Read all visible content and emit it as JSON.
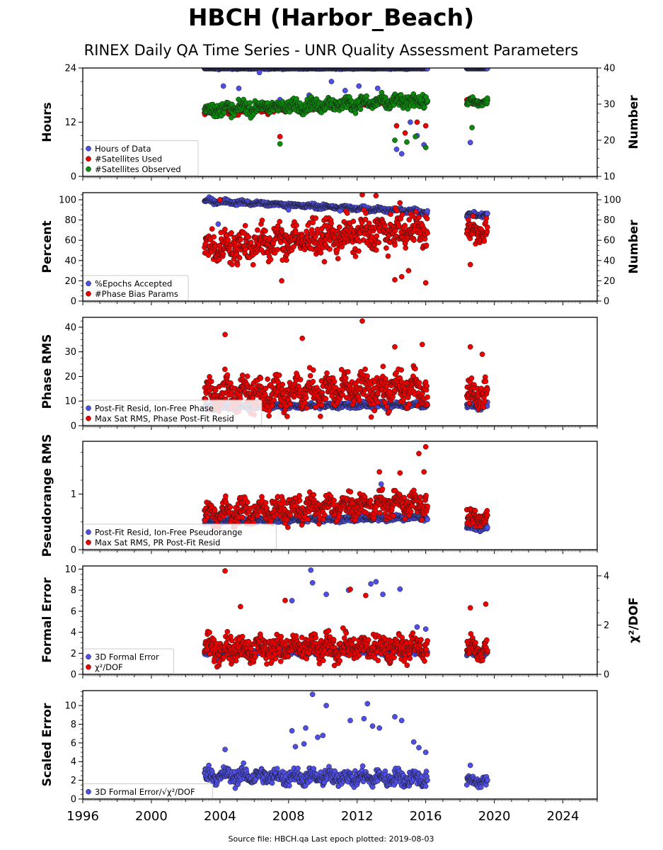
{
  "title": "HBCH (Harbor_Beach)",
  "subtitle": "RINEX Daily QA Time Series - UNR Quality Assessment Parameters",
  "footer": "Source file: HBCH.qa Last epoch plotted: 2019-08-03",
  "colors": {
    "blue": "#4f4fe8",
    "red": "#ee0000",
    "green": "#0c8a0c",
    "edge": "#1a1a1a"
  },
  "x_axis": {
    "range": [
      1996,
      2026
    ],
    "ticks": [
      1996,
      2000,
      2004,
      2008,
      2012,
      2016,
      2020,
      2024
    ]
  },
  "chart_data": [
    {
      "type": "scatter",
      "ylabel": "Hours",
      "ylim": [
        0,
        24
      ],
      "yticks": [
        0,
        12,
        24
      ],
      "y2label": "Number",
      "y2lim": [
        10,
        40
      ],
      "y2ticks": [
        10,
        20,
        30,
        40
      ],
      "legend": "bottom-left",
      "series": [
        {
          "name": "Hours of Data",
          "color": "blue",
          "axis": "left",
          "segments": [
            {
              "x": [
                2003.1,
                2016.1
              ],
              "base": [
                24,
                24
              ],
              "spread": 0.15
            },
            {
              "x": [
                2018.4,
                2019.6
              ],
              "base": [
                24,
                24
              ],
              "spread": 0.1
            }
          ],
          "outliers": [
            [
              2004.2,
              20
            ],
            [
              2005.1,
              19.5
            ],
            [
              2006.3,
              23
            ],
            [
              2007.5,
              17
            ],
            [
              2009.2,
              18
            ],
            [
              2010.5,
              21
            ],
            [
              2011.3,
              19
            ],
            [
              2012.1,
              20
            ],
            [
              2013.2,
              19.5
            ],
            [
              2013.9,
              15
            ],
            [
              2014.3,
              6
            ],
            [
              2014.6,
              5
            ],
            [
              2015.1,
              12
            ],
            [
              2015.5,
              9
            ],
            [
              2015.9,
              7
            ],
            [
              2018.6,
              7.5
            ]
          ]
        },
        {
          "name": "#Satellites Used",
          "color": "red",
          "axis": "right",
          "segments": [
            {
              "x": [
                2003.1,
                2016.1
              ],
              "base": [
                27.5,
                31
              ],
              "spread": 0.6
            },
            {
              "x": [
                2018.4,
                2019.6
              ],
              "base": [
                30.5,
                30.5
              ],
              "spread": 0.5
            }
          ],
          "outliers": [
            [
              2007.5,
              21
            ],
            [
              2014.3,
              24
            ],
            [
              2014.8,
              22
            ],
            [
              2015.5,
              25
            ],
            [
              2016.0,
              24
            ]
          ]
        },
        {
          "name": "#Satellites Observed",
          "color": "green",
          "axis": "right",
          "segments": [
            {
              "x": [
                2003.1,
                2016.1
              ],
              "base": [
                28.5,
                31
              ],
              "spread": 1.2
            },
            {
              "x": [
                2018.4,
                2019.6
              ],
              "base": [
                30.5,
                30.5
              ],
              "spread": 0.7
            }
          ],
          "outliers": [
            [
              2007.5,
              19
            ],
            [
              2014.2,
              20
            ],
            [
              2014.9,
              19.5
            ],
            [
              2015.4,
              21
            ],
            [
              2016.0,
              18
            ],
            [
              2018.7,
              23.5
            ]
          ]
        }
      ]
    },
    {
      "type": "scatter",
      "ylabel": "Percent",
      "ylim": [
        0,
        107
      ],
      "yticks": [
        0,
        20,
        40,
        60,
        80,
        100
      ],
      "y2label": "Number",
      "y2lim": [
        0,
        107
      ],
      "y2ticks": [
        0,
        20,
        40,
        60,
        80,
        100
      ],
      "legend": "bottom-left",
      "series": [
        {
          "name": "%Epochs Accepted",
          "color": "blue",
          "axis": "left",
          "segments": [
            {
              "x": [
                2003.1,
                2016.1
              ],
              "base": [
                99,
                88
              ],
              "spread": 1.5
            },
            {
              "x": [
                2018.4,
                2019.6
              ],
              "base": [
                85,
                85
              ],
              "spread": 1.5
            }
          ],
          "outliers": [
            [
              2003.9,
              76
            ],
            [
              2008.0,
              90
            ],
            [
              2011.0,
              89
            ]
          ]
        },
        {
          "name": "#Phase Bias Params",
          "color": "red",
          "axis": "right",
          "segments": [
            {
              "x": [
                2003.1,
                2016.1
              ],
              "base": [
                52,
                72
              ],
              "spread": 11
            },
            {
              "x": [
                2018.4,
                2019.6
              ],
              "base": [
                68,
                68
              ],
              "spread": 8
            }
          ],
          "outliers": [
            [
              2007.6,
              20
            ],
            [
              2012.3,
              105
            ],
            [
              2013.1,
              104
            ],
            [
              2014.2,
              21
            ],
            [
              2014.6,
              24
            ],
            [
              2015.0,
              30
            ],
            [
              2016.0,
              18
            ],
            [
              2018.6,
              36
            ],
            [
              2004.0,
              100
            ]
          ]
        }
      ]
    },
    {
      "type": "scatter",
      "ylabel": "Phase RMS",
      "ylim": [
        0,
        44
      ],
      "yticks": [
        0,
        10,
        20,
        30,
        40
      ],
      "legend": "bottom-left",
      "series": [
        {
          "name": "Post-Fit Resid, Ion-Free Phase",
          "color": "blue",
          "axis": "left",
          "segments": [
            {
              "x": [
                2003.1,
                2016.1
              ],
              "base": [
                7.5,
                8.5
              ],
              "spread": 0.7
            },
            {
              "x": [
                2018.4,
                2019.6
              ],
              "base": [
                8,
                8
              ],
              "spread": 0.8
            }
          ],
          "outliers": []
        },
        {
          "name": "Max Sat RMS, Phase Post-Fit Resid",
          "color": "red",
          "axis": "left",
          "segments": [
            {
              "x": [
                2003.1,
                2016.1
              ],
              "base": [
                13,
                15
              ],
              "spread": 4.5
            },
            {
              "x": [
                2018.4,
                2019.6
              ],
              "base": [
                13,
                13
              ],
              "spread": 3.5
            }
          ],
          "outliers": [
            [
              2004.3,
              37
            ],
            [
              2008.8,
              35.5
            ],
            [
              2012.3,
              42.5
            ],
            [
              2014.2,
              32
            ],
            [
              2015.8,
              33
            ],
            [
              2018.6,
              32
            ],
            [
              2019.3,
              29
            ]
          ]
        }
      ]
    },
    {
      "type": "scatter",
      "ylabel": "Pseudorange RMS",
      "ylim": [
        0,
        1.95
      ],
      "yticks": [
        0,
        1
      ],
      "legend": "bottom-left",
      "series": [
        {
          "name": "Post-Fit Resid, Ion-Free Pseudorange",
          "color": "blue",
          "axis": "left",
          "segments": [
            {
              "x": [
                2003.1,
                2016.1
              ],
              "base": [
                0.5,
                0.58
              ],
              "spread": 0.03
            },
            {
              "x": [
                2018.4,
                2019.6
              ],
              "base": [
                0.4,
                0.4
              ],
              "spread": 0.04
            }
          ],
          "outliers": [
            [
              2013.4,
              1.18
            ]
          ]
        },
        {
          "name": "Max Sat RMS, PR Post-Fit Resid",
          "color": "red",
          "axis": "left",
          "segments": [
            {
              "x": [
                2003.1,
                2016.1
              ],
              "base": [
                0.65,
                0.85
              ],
              "spread": 0.14
            },
            {
              "x": [
                2018.4,
                2019.6
              ],
              "base": [
                0.55,
                0.55
              ],
              "spread": 0.1
            }
          ],
          "outliers": [
            [
              2015.6,
              1.73
            ],
            [
              2016.0,
              1.85
            ],
            [
              2013.3,
              1.4
            ],
            [
              2014.5,
              1.38
            ],
            [
              2015.9,
              1.4
            ]
          ]
        }
      ]
    },
    {
      "type": "scatter",
      "ylabel": "Formal Error",
      "ylim": [
        0,
        10.3
      ],
      "yticks": [
        0,
        2,
        4,
        6,
        8,
        10
      ],
      "y2label": "χ²/DOF",
      "y2lim": [
        0,
        4.4
      ],
      "y2ticks": [
        0,
        2,
        4
      ],
      "legend": "bottom-left",
      "series": [
        {
          "name": "3D Formal Error",
          "color": "blue",
          "axis": "left",
          "segments": [
            {
              "x": [
                2003.1,
                2016.1
              ],
              "base": [
                2.1,
                2.2
              ],
              "spread": 0.25
            },
            {
              "x": [
                2018.4,
                2019.6
              ],
              "base": [
                1.9,
                1.9
              ],
              "spread": 0.25
            }
          ],
          "outliers": [
            [
              2009.3,
              9.9
            ],
            [
              2009.4,
              8.7
            ],
            [
              2008.2,
              7.0
            ],
            [
              2010.2,
              7.6
            ],
            [
              2012.8,
              8.6
            ],
            [
              2013.1,
              8.8
            ],
            [
              2013.5,
              7.6
            ],
            [
              2014.5,
              8.1
            ],
            [
              2011.5,
              8.0
            ],
            [
              2015.5,
              4.5
            ],
            [
              2016.0,
              4.3
            ]
          ]
        },
        {
          "name": "χ²/DOF",
          "color": "red",
          "axis": "right",
          "segments": [
            {
              "x": [
                2003.1,
                2016.1
              ],
              "base": [
                1.05,
                1.1
              ],
              "spread": 0.35
            },
            {
              "x": [
                2018.4,
                2019.6
              ],
              "base": [
                1.0,
                1.0
              ],
              "spread": 0.3
            }
          ],
          "outliers": [
            [
              2004.3,
              4.2
            ],
            [
              2011.6,
              3.45
            ],
            [
              2012.5,
              3.2
            ],
            [
              2007.8,
              3.0
            ],
            [
              2019.5,
              2.85
            ],
            [
              2018.6,
              2.7
            ],
            [
              2005.2,
              2.75
            ]
          ]
        }
      ]
    },
    {
      "type": "scatter",
      "ylabel": "Scaled Error",
      "ylim": [
        0,
        11.6
      ],
      "yticks": [
        0,
        2,
        4,
        6,
        8,
        10
      ],
      "legend": "bottom-left",
      "series": [
        {
          "name": "3D Formal Error/√χ²/DOF",
          "color": "blue",
          "axis": "left",
          "segments": [
            {
              "x": [
                2003.1,
                2016.1
              ],
              "base": [
                2.5,
                2.2
              ],
              "spread": 0.55
            },
            {
              "x": [
                2018.4,
                2019.6
              ],
              "base": [
                1.9,
                1.9
              ],
              "spread": 0.35
            }
          ],
          "outliers": [
            [
              2009.4,
              11.2
            ],
            [
              2010.2,
              10.0
            ],
            [
              2012.6,
              10.2
            ],
            [
              2008.2,
              7.3
            ],
            [
              2009.0,
              7.6
            ],
            [
              2011.6,
              8.4
            ],
            [
              2012.4,
              8.6
            ],
            [
              2012.9,
              7.8
            ],
            [
              2013.3,
              7.6
            ],
            [
              2014.2,
              8.8
            ],
            [
              2014.6,
              8.4
            ],
            [
              2008.4,
              5.6
            ],
            [
              2008.9,
              5.9
            ],
            [
              2009.7,
              6.6
            ],
            [
              2010.0,
              6.8
            ],
            [
              2015.3,
              6.1
            ],
            [
              2015.6,
              5.5
            ],
            [
              2016.0,
              5.0
            ],
            [
              2004.3,
              5.3
            ],
            [
              2018.6,
              3.6
            ]
          ]
        }
      ]
    }
  ]
}
